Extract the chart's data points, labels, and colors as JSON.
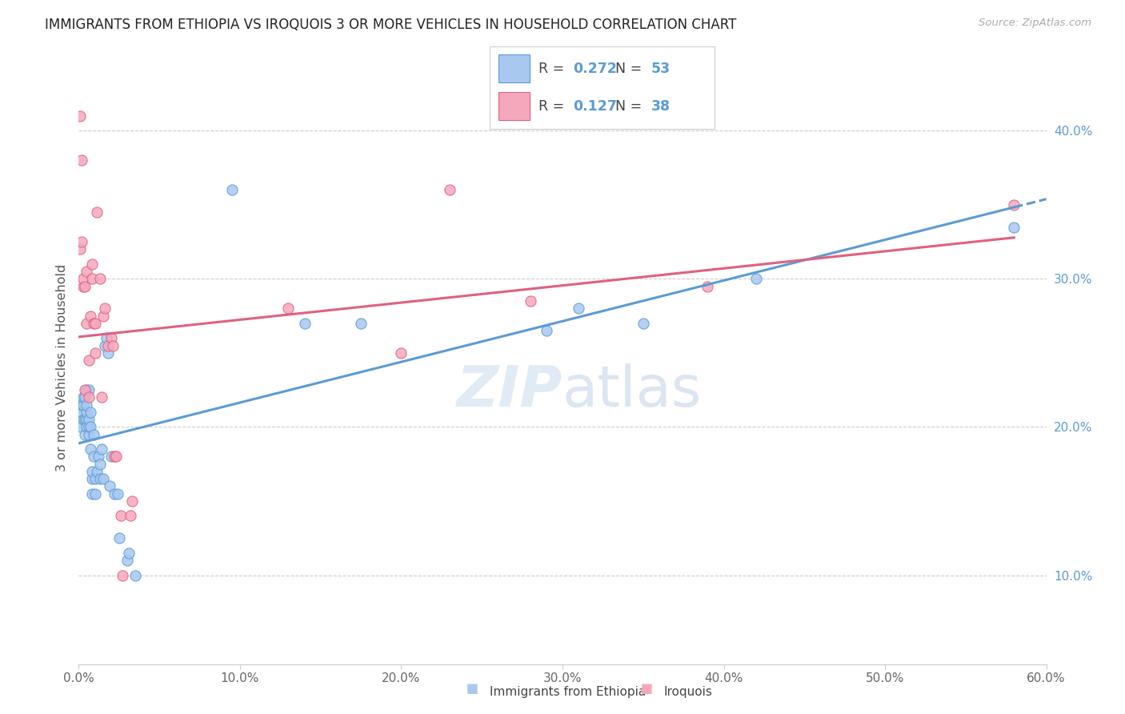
{
  "title": "IMMIGRANTS FROM ETHIOPIA VS IROQUOIS 3 OR MORE VEHICLES IN HOUSEHOLD CORRELATION CHART",
  "source_text": "Source: ZipAtlas.com",
  "ylabel": "3 or more Vehicles in Household",
  "legend_label1": "Immigrants from Ethiopia",
  "legend_label2": "Iroquois",
  "R1": 0.272,
  "N1": 53,
  "R2": 0.127,
  "N2": 38,
  "xlim": [
    0.0,
    0.6
  ],
  "ylim": [
    0.04,
    0.44
  ],
  "xticks": [
    0.0,
    0.1,
    0.2,
    0.3,
    0.4,
    0.5,
    0.6
  ],
  "yticks": [
    0.1,
    0.2,
    0.3,
    0.4
  ],
  "color_blue": "#A8C8F0",
  "color_pink": "#F5A8BC",
  "line_color_blue": "#5B9BD5",
  "line_color_pink": "#E06080",
  "background": "#FFFFFF",
  "grid_color": "#CCCCCC",
  "title_color": "#222222",
  "source_color": "#AAAAAA",
  "tick_color_blue": "#5B9BD5",
  "blue_points_x": [
    0.001,
    0.002,
    0.002,
    0.003,
    0.003,
    0.003,
    0.004,
    0.004,
    0.004,
    0.005,
    0.005,
    0.005,
    0.005,
    0.005,
    0.006,
    0.006,
    0.006,
    0.006,
    0.007,
    0.007,
    0.007,
    0.008,
    0.008,
    0.008,
    0.009,
    0.009,
    0.01,
    0.01,
    0.011,
    0.012,
    0.013,
    0.013,
    0.014,
    0.015,
    0.016,
    0.017,
    0.018,
    0.019,
    0.02,
    0.022,
    0.024,
    0.025,
    0.03,
    0.031,
    0.035,
    0.095,
    0.14,
    0.175,
    0.29,
    0.31,
    0.35,
    0.42,
    0.58
  ],
  "blue_points_y": [
    0.2,
    0.21,
    0.215,
    0.205,
    0.215,
    0.22,
    0.195,
    0.205,
    0.22,
    0.205,
    0.21,
    0.215,
    0.2,
    0.225,
    0.195,
    0.2,
    0.205,
    0.225,
    0.185,
    0.2,
    0.21,
    0.155,
    0.165,
    0.17,
    0.18,
    0.195,
    0.155,
    0.165,
    0.17,
    0.18,
    0.165,
    0.175,
    0.185,
    0.165,
    0.255,
    0.26,
    0.25,
    0.16,
    0.18,
    0.155,
    0.155,
    0.125,
    0.11,
    0.115,
    0.1,
    0.36,
    0.27,
    0.27,
    0.265,
    0.28,
    0.27,
    0.3,
    0.335
  ],
  "pink_points_x": [
    0.001,
    0.001,
    0.002,
    0.002,
    0.003,
    0.003,
    0.004,
    0.004,
    0.005,
    0.005,
    0.006,
    0.006,
    0.007,
    0.008,
    0.008,
    0.009,
    0.01,
    0.01,
    0.011,
    0.013,
    0.014,
    0.015,
    0.016,
    0.018,
    0.02,
    0.021,
    0.022,
    0.023,
    0.026,
    0.027,
    0.032,
    0.033,
    0.13,
    0.2,
    0.23,
    0.28,
    0.39,
    0.58
  ],
  "pink_points_y": [
    0.41,
    0.32,
    0.38,
    0.325,
    0.295,
    0.3,
    0.295,
    0.225,
    0.305,
    0.27,
    0.245,
    0.22,
    0.275,
    0.3,
    0.31,
    0.27,
    0.27,
    0.25,
    0.345,
    0.3,
    0.22,
    0.275,
    0.28,
    0.255,
    0.26,
    0.255,
    0.18,
    0.18,
    0.14,
    0.1,
    0.14,
    0.15,
    0.28,
    0.25,
    0.36,
    0.285,
    0.295,
    0.35
  ]
}
